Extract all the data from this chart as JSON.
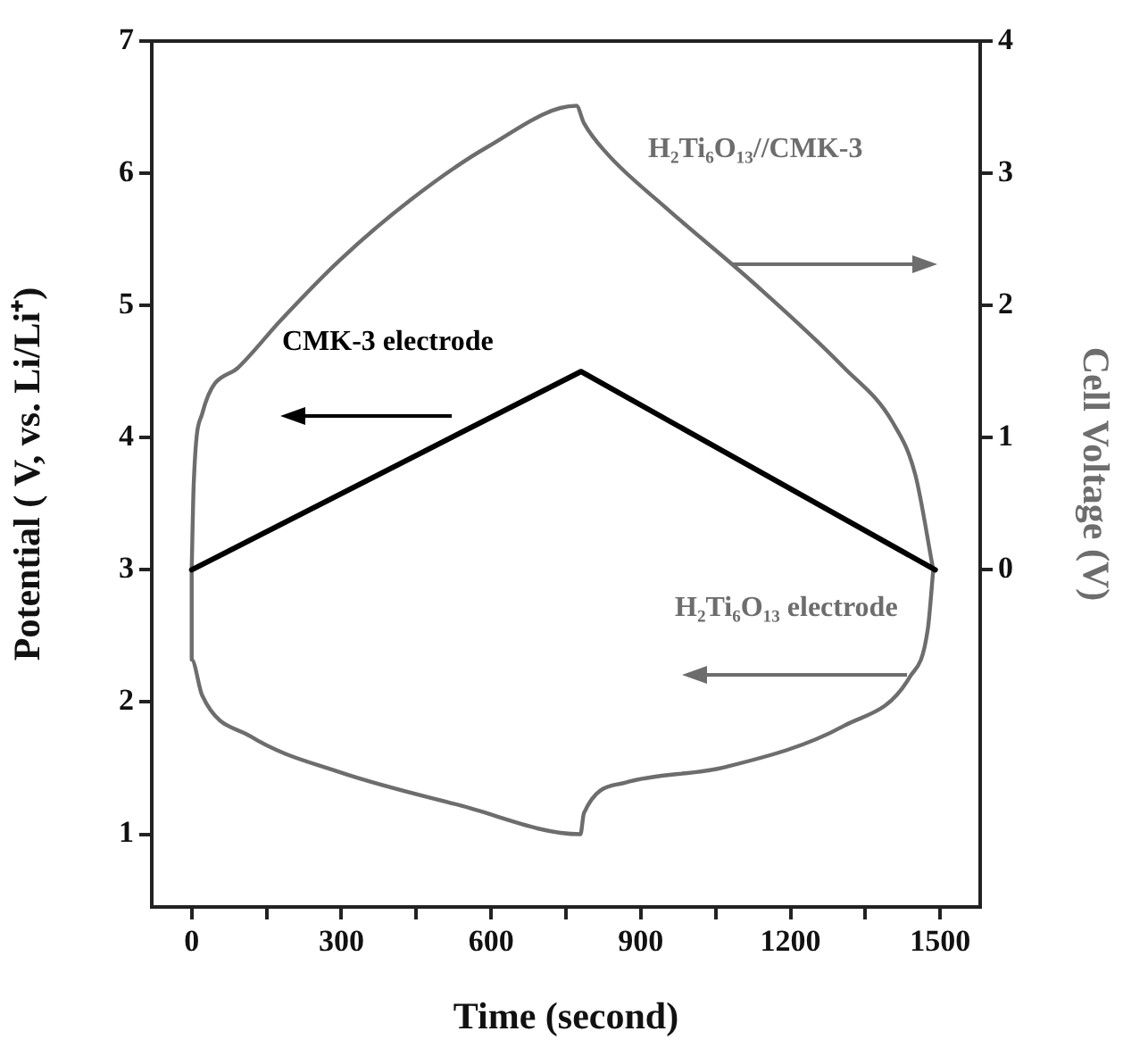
{
  "chart_data": {
    "type": "line",
    "xlabel": "Time (second)",
    "ylabel": "Potential ( V, vs. Li/Li⁺)",
    "y2label": "Cell Voltage (V)",
    "xlim": [
      -80,
      1580
    ],
    "xticks": [
      0,
      {
        "value": 150,
        "label": null
      },
      300,
      {
        "value": 450,
        "label": null
      },
      600,
      {
        "value": 750,
        "label": null
      },
      900,
      {
        "value": 1050,
        "label": null
      },
      1200,
      {
        "value": 1350,
        "label": null
      },
      1500
    ],
    "ylim": [
      0.45,
      7
    ],
    "yticks": [
      1,
      2,
      3,
      4,
      5,
      6,
      7
    ],
    "y2lim": [
      -2.55,
      4
    ],
    "y2ticks": [
      0,
      1,
      2,
      3,
      4
    ],
    "legend": false,
    "marker": "none",
    "line_style": "solid",
    "series": [
      {
        "name": "CMK-3 electrode",
        "color": "#000000",
        "x": [
          0,
          780,
          1490
        ],
        "values": [
          3,
          4.5,
          3
        ]
      },
      {
        "name": "H₂Ti₆O₁₃//CMK-3",
        "color": "#6d6d6d",
        "axis": "y2",
        "x": [
          0,
          4,
          21,
          93,
          179,
          296,
          439,
          593,
          771,
          786,
          832,
          950,
          1129,
          1307,
          1404,
          1450,
          1486
        ],
        "values": [
          0,
          0.64,
          1.18,
          1.53,
          1.89,
          2.34,
          2.8,
          3.2,
          3.51,
          3.38,
          3.15,
          2.74,
          2.16,
          1.53,
          1.12,
          0.72,
          0
        ]
      },
      {
        "name": "H₂Ti₆O₁₃ electrode",
        "color": "#6d6d6d",
        "x": [
          0,
          0,
          21,
          118,
          296,
          536,
          779,
          786,
          868,
          1071,
          1307,
          1439,
          1475,
          1486
        ],
        "values": [
          3,
          2.32,
          2.05,
          1.74,
          1.47,
          1.22,
          1.0,
          1.16,
          1.39,
          1.51,
          1.82,
          2.19,
          2.55,
          3
        ]
      }
    ]
  }
}
